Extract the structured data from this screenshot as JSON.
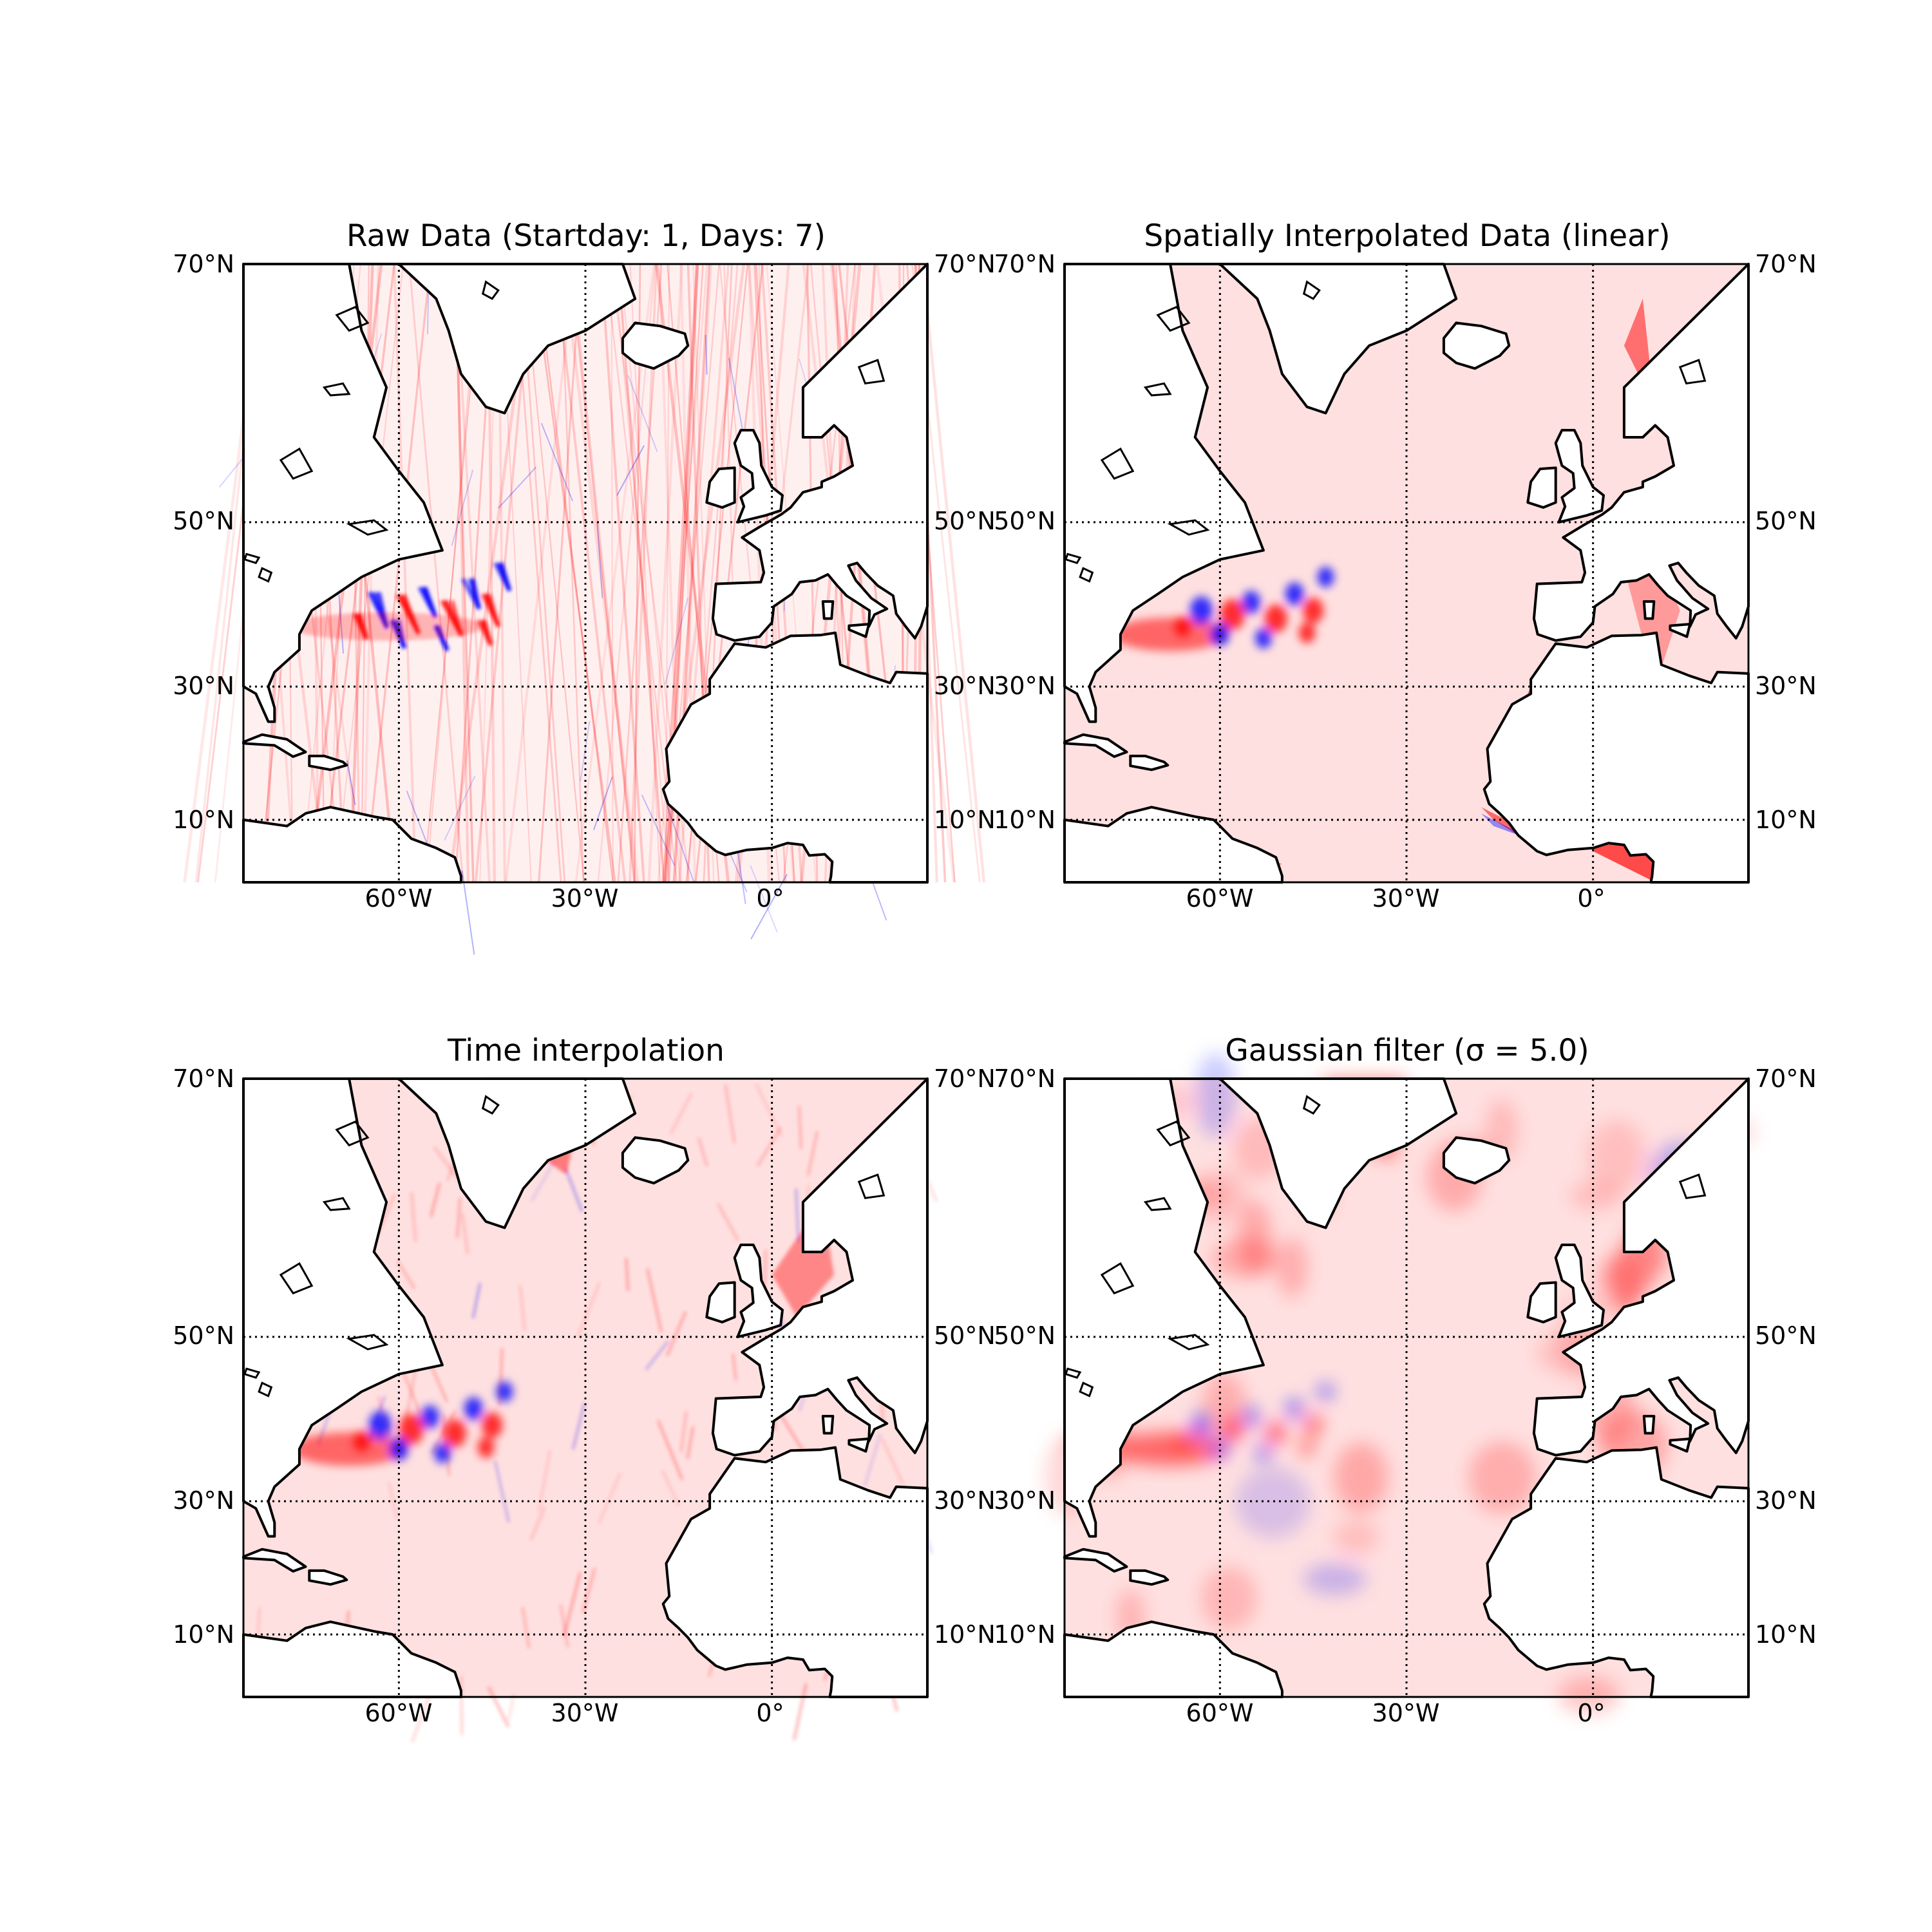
{
  "figure": {
    "colormap": {
      "negative": "#0000ff",
      "zero": "#ffffff",
      "positive": "#ff0000"
    },
    "land_color": "#ffffff",
    "coastline_color": "#000000",
    "graticule": {
      "longitudes": [
        -60,
        -30,
        0
      ],
      "latitudes": [
        10,
        30,
        50,
        70
      ],
      "style": "dotted"
    },
    "extent": {
      "lon": [
        -85,
        25
      ],
      "lat": [
        0,
        70
      ]
    }
  },
  "panels": [
    {
      "id": "raw",
      "title": "Raw Data (Startday: 1, Days: 7)",
      "appearance": "satellite-track",
      "xticks": [
        "60°W",
        "30°W",
        "0°"
      ],
      "yticks_left": [
        "70°N",
        "50°N",
        "30°N",
        "10°N"
      ],
      "yticks_right": [
        "70°N",
        "50°N",
        "30°N",
        "10°N"
      ]
    },
    {
      "id": "spatial",
      "title": "Spatially Interpolated Data (linear)",
      "appearance": "triangulated",
      "xticks": [
        "60°W",
        "30°W",
        "0°"
      ],
      "yticks_left": [
        "70°N",
        "50°N",
        "30°N",
        "10°N"
      ],
      "yticks_right": [
        "70°N",
        "50°N",
        "30°N",
        "10°N"
      ]
    },
    {
      "id": "time",
      "title": "Time interpolation",
      "appearance": "streaky",
      "xticks": [
        "60°W",
        "30°W",
        "0°"
      ],
      "yticks_left": [
        "70°N",
        "50°N",
        "30°N",
        "10°N"
      ],
      "yticks_right": [
        "70°N",
        "50°N",
        "30°N",
        "10°N"
      ]
    },
    {
      "id": "gauss",
      "title": "Gaussian filter (σ = 5.0)",
      "appearance": "smooth",
      "xticks": [
        "60°W",
        "30°W",
        "0°"
      ],
      "yticks_left": [
        "70°N",
        "50°N",
        "30°N",
        "10°N"
      ],
      "yticks_right": [
        "70°N",
        "50°N",
        "30°N",
        "10°N"
      ]
    }
  ]
}
